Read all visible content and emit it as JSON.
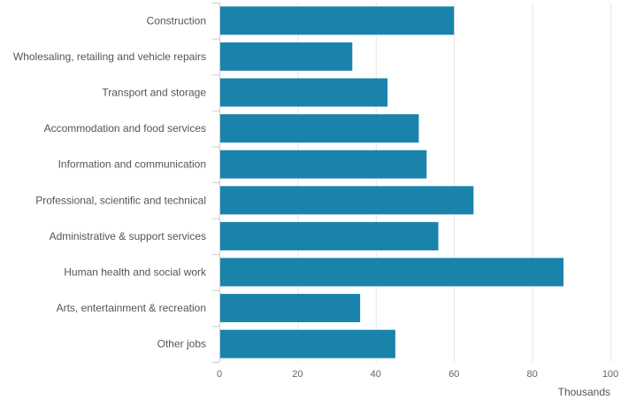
{
  "chart_data": {
    "type": "bar",
    "orientation": "horizontal",
    "categories": [
      "Construction",
      "Wholesaling, retailing and vehicle repairs",
      "Transport and storage",
      "Accommodation and food services",
      "Information and communication",
      "Professional, scientific and technical",
      "Administrative & support services",
      "Human health and social work",
      "Arts, entertainment & recreation",
      "Other jobs"
    ],
    "values": [
      60,
      34,
      43,
      51,
      53,
      65,
      56,
      88,
      36,
      45
    ],
    "xlabel": "Thousands",
    "xlim": [
      0,
      100
    ],
    "xticks": [
      0,
      20,
      40,
      60,
      80,
      100
    ],
    "tick_labels": [
      "0",
      "20",
      "40",
      "60",
      "80",
      "100"
    ],
    "grid": true,
    "legend": false,
    "colors": {
      "bar": "#1a83ab"
    }
  }
}
